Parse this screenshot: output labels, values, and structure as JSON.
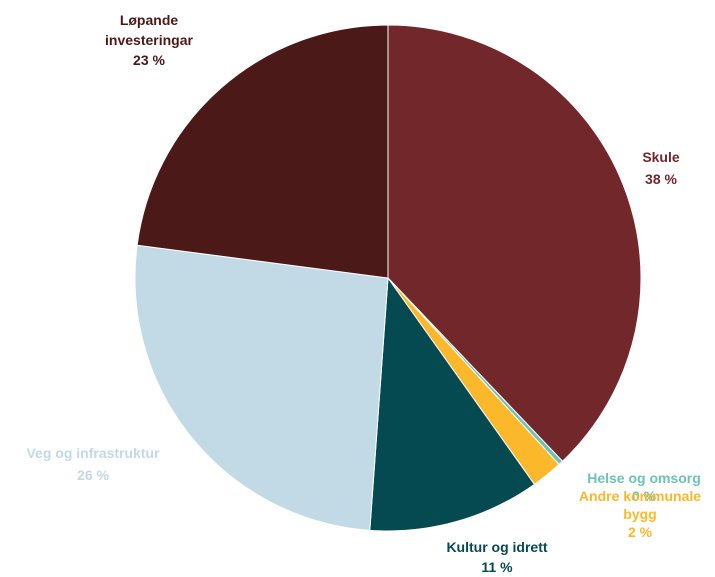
{
  "chart_data": {
    "type": "pie",
    "title": "",
    "legend": "none",
    "slices": [
      {
        "label_lines": [
          "Skule"
        ],
        "pct_label": "38 %",
        "value": 38,
        "color": "#72272b"
      },
      {
        "label_lines": [
          "Helse og omsorg"
        ],
        "pct_label": "0 %",
        "value": 0.3,
        "color": "#6cc3b7"
      },
      {
        "label_lines": [
          "Andre kommunale",
          "bygg"
        ],
        "pct_label": "2 %",
        "value": 2,
        "color": "#fbb82a"
      },
      {
        "label_lines": [
          "Kultur og idrett"
        ],
        "pct_label": "11 %",
        "value": 11,
        "color": "#054a50"
      },
      {
        "label_lines": [
          "Veg og infrastruktur"
        ],
        "pct_label": "26 %",
        "value": 26,
        "color": "#c2dae6"
      },
      {
        "label_lines": [
          "Løpande",
          "investeringar"
        ],
        "pct_label": "23 %",
        "value": 23,
        "color": "#4b1918"
      }
    ]
  }
}
